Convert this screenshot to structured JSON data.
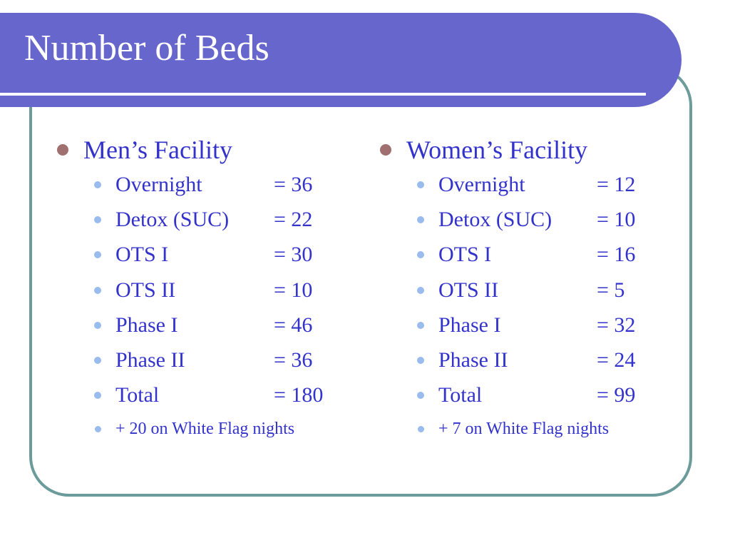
{
  "slide": {
    "title": "Number of Beds"
  },
  "men": {
    "heading": "Men’s Facility",
    "rows": [
      {
        "label": "Overnight",
        "value": "= 36"
      },
      {
        "label": "Detox (SUC)",
        "value": "= 22"
      },
      {
        "label": "OTS I",
        "value": "= 30"
      },
      {
        "label": "OTS II",
        "value": "= 10"
      },
      {
        "label": "Phase I",
        "value": "= 46"
      },
      {
        "label": "Phase II",
        "value": "= 36"
      },
      {
        "label": "Total",
        "value": "= 180"
      }
    ],
    "note": "+ 20 on White Flag nights"
  },
  "women": {
    "heading": "Women’s Facility",
    "rows": [
      {
        "label": "Overnight",
        "value": "= 12"
      },
      {
        "label": "Detox (SUC)",
        "value": "= 10"
      },
      {
        "label": "OTS I",
        "value": "= 16"
      },
      {
        "label": "OTS II",
        "value": "= 5"
      },
      {
        "label": "Phase I",
        "value": "= 32"
      },
      {
        "label": "Phase II",
        "value": "= 24"
      },
      {
        "label": "Total",
        "value": "= 99"
      }
    ],
    "note": "+ 7 on White Flag nights"
  },
  "colors": {
    "title_bar": "#6666cc",
    "frame": "#6b9b9b",
    "text": "#3333cc",
    "bullet_level1": "#a07070",
    "bullet_level2": "#99bbee"
  }
}
